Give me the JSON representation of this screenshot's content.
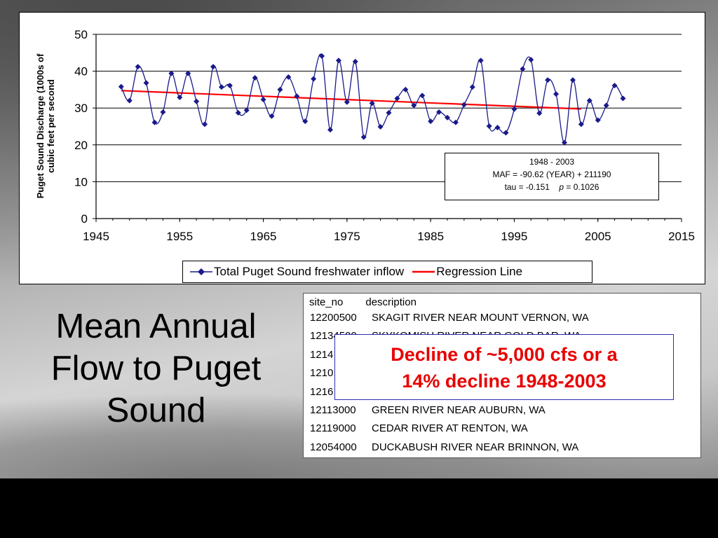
{
  "slide": {
    "title_lines": [
      "Mean Annual",
      "Flow to Puget",
      "Sound"
    ],
    "callout_lines": [
      "Decline of ~5,000 cfs or a",
      "14% decline 1948-2003"
    ]
  },
  "regression_box": {
    "line1": "1948 - 2003",
    "line2": "MAF = -90.62 (YEAR) + 211190",
    "line3_prefix": "tau = -0.151",
    "line3_p": "p",
    "line3_suffix": " = 0.1026"
  },
  "site_table": {
    "headers": [
      "site_no",
      "description"
    ],
    "rows": [
      {
        "site_no": "12200500",
        "description": "SKAGIT RIVER NEAR MOUNT VERNON, WA"
      },
      {
        "site_no": "12134500",
        "description": "SKYKOMISH RIVER NEAR GOLD BAR, WA"
      },
      {
        "site_no": "1214",
        "description": ""
      },
      {
        "site_no": "1210",
        "description": ""
      },
      {
        "site_no": "1216",
        "description": "A"
      },
      {
        "site_no": "12113000",
        "description": "GREEN RIVER NEAR AUBURN, WA"
      },
      {
        "site_no": "12119000",
        "description": "CEDAR RIVER AT RENTON, WA"
      },
      {
        "site_no": "12054000",
        "description": "DUCKABUSH RIVER NEAR BRINNON, WA"
      }
    ]
  },
  "chart_data": {
    "type": "line",
    "title": "",
    "xlabel": "",
    "ylabel": "Puget Sound Discharge (1000s of cubic feet per second",
    "xlim": [
      1945,
      2015
    ],
    "ylim": [
      0,
      50
    ],
    "x_ticks": [
      "1945",
      "1955",
      "1965",
      "1975",
      "1985",
      "1995",
      "2005",
      "2015"
    ],
    "y_ticks": [
      "0",
      "10",
      "20",
      "30",
      "40",
      "50"
    ],
    "grid": true,
    "legend_position": "bottom",
    "series": [
      {
        "name": "Total Puget Sound freshwater inflow",
        "color": "#1a1a8c",
        "marker": "diamond",
        "x": [
          1948,
          1949,
          1950,
          1951,
          1952,
          1953,
          1954,
          1955,
          1956,
          1957,
          1958,
          1959,
          1960,
          1961,
          1962,
          1963,
          1964,
          1965,
          1966,
          1967,
          1968,
          1969,
          1970,
          1971,
          1972,
          1973,
          1974,
          1975,
          1976,
          1977,
          1978,
          1979,
          1980,
          1981,
          1982,
          1983,
          1984,
          1985,
          1986,
          1987,
          1988,
          1989,
          1990,
          1991,
          1992,
          1993,
          1994,
          1995,
          1996,
          1997,
          1998,
          1999,
          2000,
          2001,
          2002,
          2003,
          2004,
          2005,
          2006,
          2007,
          2008
        ],
        "values": [
          35.8,
          32.0,
          41.2,
          36.8,
          26.1,
          28.9,
          39.4,
          32.9,
          39.4,
          31.8,
          25.6,
          41.2,
          35.7,
          36.1,
          28.7,
          29.4,
          38.2,
          32.3,
          27.8,
          35.0,
          38.4,
          33.2,
          26.4,
          37.9,
          44.1,
          24.1,
          42.9,
          31.6,
          42.6,
          22.1,
          31.3,
          24.9,
          28.7,
          32.6,
          35.0,
          30.7,
          33.4,
          26.4,
          28.9,
          27.4,
          26.1,
          30.9,
          35.7,
          42.9,
          25.1,
          24.7,
          23.3,
          29.7,
          40.6,
          43.1,
          28.6,
          37.6,
          33.8,
          20.6,
          37.6,
          25.6,
          32.0,
          26.7,
          30.7,
          36.1,
          32.6
        ]
      },
      {
        "name": "Regression Line",
        "color": "#ff0000",
        "x": [
          1948,
          2003
        ],
        "values": [
          34.73,
          29.75
        ]
      }
    ]
  }
}
